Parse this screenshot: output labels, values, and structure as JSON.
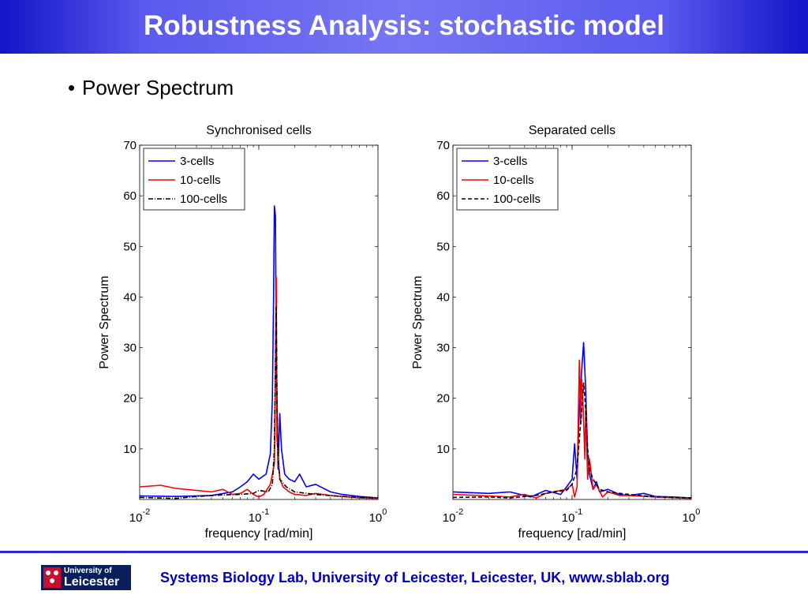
{
  "slide": {
    "title": "Robustness Analysis: stochastic model",
    "bullet": "Power Spectrum",
    "footer": "Systems Biology Lab, University of Leicester, Leicester, UK, www.sblab.org",
    "logo_line1": "University of",
    "logo_line2": "Leicester",
    "colors": {
      "title_bar": "#3a3ae0",
      "footer_text": "#0000c0",
      "footer_line": "#2a2ad2"
    }
  },
  "chart_data": [
    {
      "type": "line",
      "title": "Synchronised cells",
      "xlabel": "frequency [rad/min]",
      "ylabel": "Power Spectrum",
      "xscale": "log",
      "xlim": [
        0.01,
        1
      ],
      "ylim": [
        0,
        70
      ],
      "yticks": [
        10,
        20,
        30,
        40,
        50,
        60,
        70
      ],
      "xticks": [
        {
          "base": "10",
          "exp": "-2",
          "value": 0.01
        },
        {
          "base": "10",
          "exp": "-1",
          "value": 0.1
        },
        {
          "base": "10",
          "exp": "0",
          "value": 1
        }
      ],
      "legend_position": "top-left",
      "series": [
        {
          "name": "3-cells",
          "color": "#0000ff",
          "dash": "",
          "points": [
            [
              0.01,
              0.7
            ],
            [
              0.02,
              0.6
            ],
            [
              0.04,
              0.8
            ],
            [
              0.06,
              1.5
            ],
            [
              0.07,
              2.5
            ],
            [
              0.08,
              3.5
            ],
            [
              0.09,
              5
            ],
            [
              0.1,
              4
            ],
            [
              0.115,
              5
            ],
            [
              0.125,
              9
            ],
            [
              0.13,
              20
            ],
            [
              0.133,
              40
            ],
            [
              0.135,
              58
            ],
            [
              0.138,
              56
            ],
            [
              0.14,
              30
            ],
            [
              0.145,
              6
            ],
            [
              0.15,
              17
            ],
            [
              0.155,
              10
            ],
            [
              0.165,
              5
            ],
            [
              0.18,
              4
            ],
            [
              0.2,
              3.5
            ],
            [
              0.22,
              5
            ],
            [
              0.25,
              2.5
            ],
            [
              0.3,
              3
            ],
            [
              0.4,
              1.5
            ],
            [
              0.5,
              1
            ],
            [
              0.7,
              0.6
            ],
            [
              1,
              0.3
            ]
          ]
        },
        {
          "name": "10-cells",
          "color": "#ff0000",
          "dash": "",
          "points": [
            [
              0.01,
              2.5
            ],
            [
              0.015,
              2.8
            ],
            [
              0.02,
              2.2
            ],
            [
              0.03,
              1.8
            ],
            [
              0.04,
              1.5
            ],
            [
              0.05,
              2
            ],
            [
              0.06,
              1
            ],
            [
              0.07,
              1.2
            ],
            [
              0.08,
              2
            ],
            [
              0.09,
              1
            ],
            [
              0.1,
              0.5
            ],
            [
              0.11,
              1
            ],
            [
              0.125,
              3
            ],
            [
              0.13,
              5
            ],
            [
              0.135,
              7
            ],
            [
              0.138,
              25
            ],
            [
              0.14,
              44
            ],
            [
              0.142,
              12
            ],
            [
              0.15,
              4
            ],
            [
              0.16,
              2.5
            ],
            [
              0.18,
              1.5
            ],
            [
              0.2,
              1
            ],
            [
              0.25,
              0.8
            ],
            [
              0.3,
              1.2
            ],
            [
              0.4,
              0.8
            ],
            [
              0.5,
              0.6
            ],
            [
              0.7,
              0.3
            ],
            [
              1,
              0.2
            ]
          ]
        },
        {
          "name": "100-cells",
          "color": "#000000",
          "dash": "6,2,1,2",
          "points": [
            [
              0.01,
              0.4
            ],
            [
              0.02,
              0.2
            ],
            [
              0.03,
              0.6
            ],
            [
              0.05,
              0.9
            ],
            [
              0.07,
              1
            ],
            [
              0.09,
              1.2
            ],
            [
              0.1,
              1.8
            ],
            [
              0.12,
              1.5
            ],
            [
              0.13,
              3
            ],
            [
              0.135,
              10
            ],
            [
              0.14,
              38
            ],
            [
              0.142,
              20
            ],
            [
              0.145,
              8
            ],
            [
              0.15,
              4
            ],
            [
              0.17,
              2.5
            ],
            [
              0.2,
              1.5
            ],
            [
              0.3,
              1
            ],
            [
              0.5,
              0.6
            ],
            [
              1,
              0.3
            ]
          ]
        }
      ]
    },
    {
      "type": "line",
      "title": "Separated cells",
      "xlabel": "frequency [rad/min]",
      "ylabel": "Power Spectrum",
      "xscale": "log",
      "xlim": [
        0.01,
        1
      ],
      "ylim": [
        0,
        70
      ],
      "yticks": [
        10,
        20,
        30,
        40,
        50,
        60,
        70
      ],
      "xticks": [
        {
          "base": "10",
          "exp": "-2",
          "value": 0.01
        },
        {
          "base": "10",
          "exp": "-1",
          "value": 0.1
        },
        {
          "base": "10",
          "exp": "0",
          "value": 1
        }
      ],
      "legend_position": "top-left",
      "series": [
        {
          "name": "3-cells",
          "color": "#0000ff",
          "dash": "",
          "points": [
            [
              0.01,
              1.5
            ],
            [
              0.02,
              1.2
            ],
            [
              0.03,
              1.5
            ],
            [
              0.045,
              0.5
            ],
            [
              0.06,
              1.8
            ],
            [
              0.08,
              1
            ],
            [
              0.09,
              2.5
            ],
            [
              0.1,
              4
            ],
            [
              0.105,
              11
            ],
            [
              0.11,
              4
            ],
            [
              0.115,
              18
            ],
            [
              0.12,
              25
            ],
            [
              0.125,
              31
            ],
            [
              0.13,
              22
            ],
            [
              0.135,
              9
            ],
            [
              0.14,
              5
            ],
            [
              0.15,
              2
            ],
            [
              0.16,
              3.5
            ],
            [
              0.17,
              1.5
            ],
            [
              0.2,
              2
            ],
            [
              0.25,
              1
            ],
            [
              0.3,
              0.8
            ],
            [
              0.4,
              1.2
            ],
            [
              0.5,
              0.6
            ],
            [
              0.7,
              0.5
            ],
            [
              1,
              0.3
            ]
          ]
        },
        {
          "name": "10-cells",
          "color": "#ff0000",
          "dash": "",
          "points": [
            [
              0.01,
              1
            ],
            [
              0.02,
              0.7
            ],
            [
              0.03,
              0.5
            ],
            [
              0.04,
              1
            ],
            [
              0.05,
              0.3
            ],
            [
              0.06,
              1.2
            ],
            [
              0.08,
              1.8
            ],
            [
              0.09,
              2
            ],
            [
              0.1,
              3
            ],
            [
              0.105,
              0.5
            ],
            [
              0.11,
              2.5
            ],
            [
              0.115,
              27.5
            ],
            [
              0.118,
              15
            ],
            [
              0.12,
              24
            ],
            [
              0.123,
              20
            ],
            [
              0.128,
              8
            ],
            [
              0.13,
              18
            ],
            [
              0.135,
              4
            ],
            [
              0.14,
              8
            ],
            [
              0.15,
              2
            ],
            [
              0.16,
              3
            ],
            [
              0.18,
              0.5
            ],
            [
              0.2,
              1.5
            ],
            [
              0.25,
              0.8
            ],
            [
              0.3,
              0.8
            ],
            [
              0.5,
              0.5
            ],
            [
              1,
              0.2
            ]
          ]
        },
        {
          "name": "100-cells",
          "color": "#000000",
          "dash": "5,3",
          "points": [
            [
              0.01,
              0.4
            ],
            [
              0.02,
              0.5
            ],
            [
              0.03,
              0.3
            ],
            [
              0.05,
              0.8
            ],
            [
              0.07,
              1.5
            ],
            [
              0.09,
              1.8
            ],
            [
              0.1,
              3
            ],
            [
              0.11,
              6
            ],
            [
              0.115,
              12
            ],
            [
              0.12,
              17
            ],
            [
              0.125,
              23
            ],
            [
              0.13,
              18
            ],
            [
              0.135,
              10
            ],
            [
              0.14,
              6
            ],
            [
              0.15,
              4
            ],
            [
              0.17,
              2
            ],
            [
              0.2,
              1.5
            ],
            [
              0.3,
              1
            ],
            [
              0.5,
              0.5
            ],
            [
              1,
              0.3
            ]
          ]
        }
      ]
    }
  ]
}
